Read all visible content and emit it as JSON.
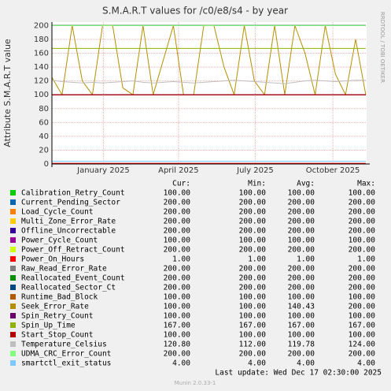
{
  "chart_data": {
    "type": "line",
    "title": "S.M.A.R.T values for /c0/e8/s4 - by year",
    "y_label": "Attribute S.M.A.R.T value",
    "side_label": "RRDTOOL / TOBI OETIKER",
    "x": [
      0,
      12,
      24,
      36,
      48,
      60,
      72,
      84,
      96,
      108,
      120,
      132,
      144,
      156,
      168,
      180,
      192,
      204,
      216,
      228,
      240,
      252,
      264,
      276,
      288,
      300,
      312,
      324,
      336,
      348,
      360,
      372
    ],
    "xlim": [
      0,
      373
    ],
    "xticks": [
      {
        "value": 61,
        "label": "January 2025"
      },
      {
        "value": 150,
        "label": "April 2025"
      },
      {
        "value": 241,
        "label": "July 2025"
      },
      {
        "value": 333,
        "label": "October 2025"
      }
    ],
    "ylim": [
      0,
      205
    ],
    "yticks": [
      0,
      20,
      40,
      60,
      80,
      100,
      120,
      140,
      160,
      180,
      200
    ],
    "grid": true,
    "stat_headers": [
      "Cur:",
      "Min:",
      "Avg:",
      "Max:"
    ],
    "series": [
      {
        "name": "Calibration_Retry_Count",
        "color": "#00CC00",
        "values": [
          100,
          100,
          100,
          100,
          100,
          100,
          100,
          100,
          100,
          100,
          100,
          100,
          100,
          100,
          100,
          100,
          100,
          100,
          100,
          100,
          100,
          100,
          100,
          100,
          100,
          100,
          100,
          100,
          100,
          100,
          100,
          100
        ],
        "stats": [
          "100.00",
          "100.00",
          "100.00",
          "100.00"
        ]
      },
      {
        "name": "Current_Pending_Sector",
        "color": "#0066B3",
        "values": [
          200,
          200,
          200,
          200,
          200,
          200,
          200,
          200,
          200,
          200,
          200,
          200,
          200,
          200,
          200,
          200,
          200,
          200,
          200,
          200,
          200,
          200,
          200,
          200,
          200,
          200,
          200,
          200,
          200,
          200,
          200,
          200
        ],
        "stats": [
          "200.00",
          "200.00",
          "200.00",
          "200.00"
        ]
      },
      {
        "name": "Load_Cycle_Count",
        "color": "#FF8000",
        "values": [
          200,
          200,
          200,
          200,
          200,
          200,
          200,
          200,
          200,
          200,
          200,
          200,
          200,
          200,
          200,
          200,
          200,
          200,
          200,
          200,
          200,
          200,
          200,
          200,
          200,
          200,
          200,
          200,
          200,
          200,
          200,
          200
        ],
        "stats": [
          "200.00",
          "200.00",
          "200.00",
          "200.00"
        ]
      },
      {
        "name": "Multi_Zone_Error_Rate",
        "color": "#FFCC00",
        "values": [
          200,
          200,
          200,
          200,
          200,
          200,
          200,
          200,
          200,
          200,
          200,
          200,
          200,
          200,
          200,
          200,
          200,
          200,
          200,
          200,
          200,
          200,
          200,
          200,
          200,
          200,
          200,
          200,
          200,
          200,
          200,
          200
        ],
        "stats": [
          "200.00",
          "200.00",
          "200.00",
          "200.00"
        ]
      },
      {
        "name": "Offline_Uncorrectable",
        "color": "#330099",
        "values": [
          200,
          200,
          200,
          200,
          200,
          200,
          200,
          200,
          200,
          200,
          200,
          200,
          200,
          200,
          200,
          200,
          200,
          200,
          200,
          200,
          200,
          200,
          200,
          200,
          200,
          200,
          200,
          200,
          200,
          200,
          200,
          200
        ],
        "stats": [
          "200.00",
          "200.00",
          "200.00",
          "200.00"
        ]
      },
      {
        "name": "Power_Cycle_Count",
        "color": "#990099",
        "values": [
          100,
          100,
          100,
          100,
          100,
          100,
          100,
          100,
          100,
          100,
          100,
          100,
          100,
          100,
          100,
          100,
          100,
          100,
          100,
          100,
          100,
          100,
          100,
          100,
          100,
          100,
          100,
          100,
          100,
          100,
          100,
          100
        ],
        "stats": [
          "100.00",
          "100.00",
          "100.00",
          "100.00"
        ]
      },
      {
        "name": "Power_Off_Retract_Count",
        "color": "#CCFF00",
        "values": [
          200,
          200,
          200,
          200,
          200,
          200,
          200,
          200,
          200,
          200,
          200,
          200,
          200,
          200,
          200,
          200,
          200,
          200,
          200,
          200,
          200,
          200,
          200,
          200,
          200,
          200,
          200,
          200,
          200,
          200,
          200,
          200
        ],
        "stats": [
          "200.00",
          "200.00",
          "200.00",
          "200.00"
        ]
      },
      {
        "name": "Power_On_Hours",
        "color": "#FF0000",
        "values": [
          1,
          1,
          1,
          1,
          1,
          1,
          1,
          1,
          1,
          1,
          1,
          1,
          1,
          1,
          1,
          1,
          1,
          1,
          1,
          1,
          1,
          1,
          1,
          1,
          1,
          1,
          1,
          1,
          1,
          1,
          1,
          1
        ],
        "stats": [
          "1.00",
          "1.00",
          "1.00",
          "1.00"
        ]
      },
      {
        "name": "Raw_Read_Error_Rate",
        "color": "#808080",
        "values": [
          200,
          200,
          200,
          200,
          200,
          200,
          200,
          200,
          200,
          200,
          200,
          200,
          200,
          200,
          200,
          200,
          200,
          200,
          200,
          200,
          200,
          200,
          200,
          200,
          200,
          200,
          200,
          200,
          200,
          200,
          200,
          200
        ],
        "stats": [
          "200.00",
          "200.00",
          "200.00",
          "200.00"
        ]
      },
      {
        "name": "Reallocated_Event_Count",
        "color": "#008F00",
        "values": [
          200,
          200,
          200,
          200,
          200,
          200,
          200,
          200,
          200,
          200,
          200,
          200,
          200,
          200,
          200,
          200,
          200,
          200,
          200,
          200,
          200,
          200,
          200,
          200,
          200,
          200,
          200,
          200,
          200,
          200,
          200,
          200
        ],
        "stats": [
          "200.00",
          "200.00",
          "200.00",
          "200.00"
        ]
      },
      {
        "name": "Reallocated_Sector_Ct",
        "color": "#00487D",
        "values": [
          200,
          200,
          200,
          200,
          200,
          200,
          200,
          200,
          200,
          200,
          200,
          200,
          200,
          200,
          200,
          200,
          200,
          200,
          200,
          200,
          200,
          200,
          200,
          200,
          200,
          200,
          200,
          200,
          200,
          200,
          200,
          200
        ],
        "stats": [
          "200.00",
          "200.00",
          "200.00",
          "200.00"
        ]
      },
      {
        "name": "Runtime_Bad_Block",
        "color": "#B35A00",
        "values": [
          100,
          100,
          100,
          100,
          100,
          100,
          100,
          100,
          100,
          100,
          100,
          100,
          100,
          100,
          100,
          100,
          100,
          100,
          100,
          100,
          100,
          100,
          100,
          100,
          100,
          100,
          100,
          100,
          100,
          100,
          100,
          100
        ],
        "stats": [
          "100.00",
          "100.00",
          "100.00",
          "100.00"
        ]
      },
      {
        "name": "Seek_Error_Rate",
        "color": "#B38F00",
        "values": [
          125,
          100,
          200,
          120,
          100,
          200,
          200,
          110,
          100,
          200,
          100,
          150,
          200,
          100,
          100,
          200,
          200,
          140,
          100,
          200,
          120,
          100,
          200,
          100,
          200,
          160,
          100,
          200,
          130,
          100,
          180,
          100
        ],
        "stats": [
          "100.00",
          "100.00",
          "140.43",
          "200.00"
        ]
      },
      {
        "name": "Spin_Retry_Count",
        "color": "#6B006B",
        "values": [
          100,
          100,
          100,
          100,
          100,
          100,
          100,
          100,
          100,
          100,
          100,
          100,
          100,
          100,
          100,
          100,
          100,
          100,
          100,
          100,
          100,
          100,
          100,
          100,
          100,
          100,
          100,
          100,
          100,
          100,
          100,
          100
        ],
        "stats": [
          "100.00",
          "100.00",
          "100.00",
          "100.00"
        ]
      },
      {
        "name": "Spin_Up_Time",
        "color": "#8FB300",
        "values": [
          167,
          167,
          167,
          167,
          167,
          167,
          167,
          167,
          167,
          167,
          167,
          167,
          167,
          167,
          167,
          167,
          167,
          167,
          167,
          167,
          167,
          167,
          167,
          167,
          167,
          167,
          167,
          167,
          167,
          167,
          167,
          167
        ],
        "stats": [
          "167.00",
          "167.00",
          "167.00",
          "167.00"
        ]
      },
      {
        "name": "Start_Stop_Count",
        "color": "#B30000",
        "values": [
          100,
          100,
          100,
          100,
          100,
          100,
          100,
          100,
          100,
          100,
          100,
          100,
          100,
          100,
          100,
          100,
          100,
          100,
          100,
          100,
          100,
          100,
          100,
          100,
          100,
          100,
          100,
          100,
          100,
          100,
          100,
          100
        ],
        "stats": [
          "100.00",
          "100.00",
          "100.00",
          "100.00"
        ]
      },
      {
        "name": "Temperature_Celsius",
        "color": "#BEBEBE",
        "values": [
          121,
          119,
          118,
          117,
          118,
          117,
          118,
          119,
          120,
          118,
          117,
          118,
          119,
          118,
          117,
          118,
          119,
          120,
          121,
          120,
          119,
          118,
          117,
          116,
          118,
          120,
          121,
          120,
          119,
          120,
          121,
          120.8
        ],
        "stats": [
          "120.80",
          "112.00",
          "119.78",
          "124.00"
        ]
      },
      {
        "name": "UDMA_CRC_Error_Count",
        "color": "#80FF80",
        "values": [
          200,
          200,
          200,
          200,
          200,
          200,
          200,
          200,
          200,
          200,
          200,
          200,
          200,
          200,
          200,
          200,
          200,
          200,
          200,
          200,
          200,
          200,
          200,
          200,
          200,
          200,
          200,
          200,
          200,
          200,
          200,
          200
        ],
        "stats": [
          "200.00",
          "200.00",
          "200.00",
          "200.00"
        ]
      },
      {
        "name": "smartctl_exit_status",
        "color": "#80C9FF",
        "values": [
          4,
          4,
          4,
          4,
          4,
          4,
          4,
          4,
          4,
          4,
          4,
          4,
          4,
          4,
          4,
          4,
          4,
          4,
          4,
          4,
          4,
          4,
          4,
          4,
          4,
          4,
          4,
          4,
          4,
          4,
          4,
          4
        ],
        "stats": [
          "4.00",
          "4.00",
          "4.00",
          "4.00"
        ]
      }
    ],
    "last_update": "Last update:  Wed Dec 17 02:30:00 2025",
    "footer": "Munin 2.0.33-1"
  }
}
